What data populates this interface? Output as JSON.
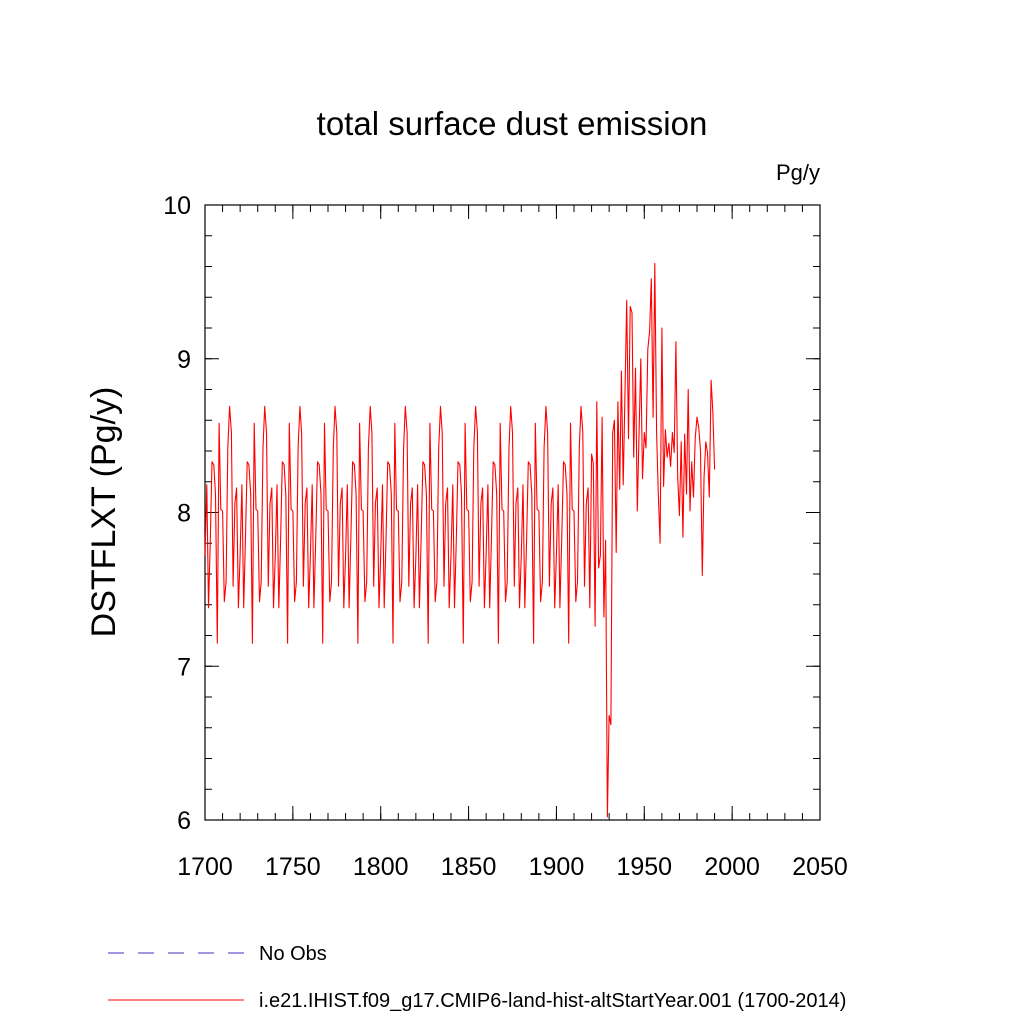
{
  "chart_data": {
    "type": "line",
    "title": "total surface dust emission",
    "units_label": "Pg/y",
    "ylabel": "DSTFLXT  (Pg/y)",
    "xlabel": "",
    "xlim": [
      1700,
      2050
    ],
    "ylim": [
      6,
      10
    ],
    "x_ticks": [
      1700,
      1750,
      1800,
      1850,
      1900,
      1950,
      2000,
      2050
    ],
    "x_minor_step": 10,
    "y_ticks": [
      6,
      7,
      8,
      9,
      10
    ],
    "y_minor_step": 0.2,
    "grid": false,
    "legend_position": "bottom",
    "legend": [
      {
        "label": "No Obs",
        "color": "#6a5acd",
        "style": "dashed"
      },
      {
        "label": "i.e21.IHIST.f09_g17.CMIP6-land-hist-altStartYear.001 (1700-2014)",
        "color": "#ff0000",
        "style": "solid"
      }
    ],
    "series": [
      {
        "name": "i.e21.IHIST.f09_g17.CMIP6-land-hist-altStartYear.001 (1700-2014)",
        "color": "#ff0000",
        "cycle_base": [
          7.72,
          8.18,
          7.38,
          7.82,
          8.33,
          8.31,
          8.12,
          7.15,
          8.58,
          8.02,
          8.01,
          7.42,
          7.55,
          8.42,
          8.69,
          8.52,
          7.52,
          8.06,
          8.16,
          7.38
        ],
        "cycle_repeat_years": [
          1700,
          1920
        ],
        "tail_start": 1920,
        "tail_values": [
          8.38,
          8.32,
          7.26,
          8.72,
          7.64,
          7.72,
          8.62,
          7.32,
          7.82,
          6.02,
          6.68,
          6.62,
          8.52,
          8.6,
          7.74,
          8.72,
          8.15,
          8.92,
          8.18,
          8.78,
          9.38,
          8.48,
          9.34,
          9.3,
          8.36,
          8.94,
          8.01,
          8.5,
          9.0,
          8.22,
          8.52,
          8.42,
          9.06,
          9.18,
          9.52,
          8.62,
          9.62,
          8.52,
          8.12,
          7.8,
          9.2,
          8.17,
          8.54,
          8.36,
          8.45,
          8.3,
          8.52,
          8.39,
          9.11,
          8.23,
          7.98,
          8.46,
          7.84,
          8.51,
          8.12,
          8.8,
          8.01,
          8.33,
          8.1,
          8.48,
          8.62,
          8.55,
          8.4,
          7.59,
          8.22,
          8.46,
          8.39,
          8.1,
          8.86,
          8.66,
          8.28
        ]
      }
    ]
  }
}
